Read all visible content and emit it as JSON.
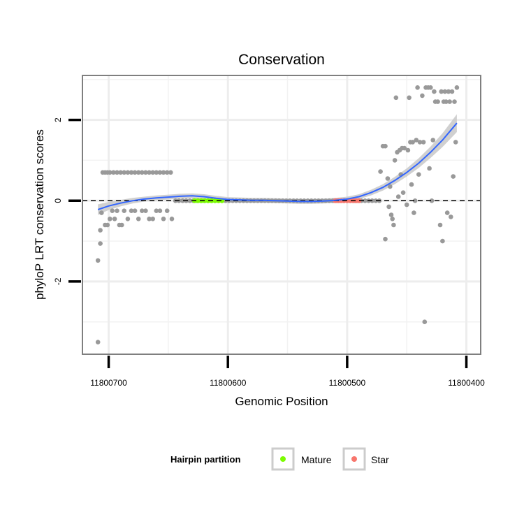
{
  "chart_data": {
    "type": "scatter",
    "title": "Conservation",
    "xlabel": "Genomic Position",
    "ylabel": "phyloP LRT conservation scores",
    "xlim": [
      11800722,
      11800388
    ],
    "ylim": [
      -3.8,
      3.1
    ],
    "x_reversed": true,
    "x_ticks": [
      11800700,
      11800600,
      11800500,
      11800400
    ],
    "x_tick_labels": [
      "11800700",
      "11800600",
      "11800500",
      "11800400"
    ],
    "y_ticks": [
      -2,
      0,
      2
    ],
    "y_tick_labels": [
      "-2",
      "0",
      "2"
    ],
    "grid": true,
    "reference_line": {
      "y": 0,
      "style": "dashed"
    },
    "colors": {
      "points": "#999999",
      "smooth": "#3366FF",
      "band": "#C8C8C8",
      "panel_border": "#7F7F7F",
      "mature": "#7CFC00",
      "star": "#F8766D"
    },
    "points": [
      {
        "x": 11800709,
        "y": -3.5
      },
      {
        "x": 11800709,
        "y": -1.48
      },
      {
        "x": 11800707,
        "y": -1.06
      },
      {
        "x": 11800707,
        "y": -0.73
      },
      {
        "x": 11800706,
        "y": -0.3
      },
      {
        "x": 11800705,
        "y": 0.7
      },
      {
        "x": 11800703,
        "y": 0.7
      },
      {
        "x": 11800701,
        "y": 0.7
      },
      {
        "x": 11800699,
        "y": 0.7
      },
      {
        "x": 11800696,
        "y": 0.7
      },
      {
        "x": 11800693,
        "y": 0.7
      },
      {
        "x": 11800690,
        "y": 0.7
      },
      {
        "x": 11800687,
        "y": 0.7
      },
      {
        "x": 11800684,
        "y": 0.7
      },
      {
        "x": 11800681,
        "y": 0.7
      },
      {
        "x": 11800678,
        "y": 0.7
      },
      {
        "x": 11800675,
        "y": 0.7
      },
      {
        "x": 11800672,
        "y": 0.7
      },
      {
        "x": 11800669,
        "y": 0.7
      },
      {
        "x": 11800666,
        "y": 0.7
      },
      {
        "x": 11800663,
        "y": 0.7
      },
      {
        "x": 11800660,
        "y": 0.7
      },
      {
        "x": 11800657,
        "y": 0.7
      },
      {
        "x": 11800654,
        "y": 0.7
      },
      {
        "x": 11800651,
        "y": 0.7
      },
      {
        "x": 11800648,
        "y": 0.7
      },
      {
        "x": 11800703,
        "y": -0.6
      },
      {
        "x": 11800701,
        "y": -0.6
      },
      {
        "x": 11800699,
        "y": -0.45
      },
      {
        "x": 11800697,
        "y": -0.25
      },
      {
        "x": 11800695,
        "y": -0.45
      },
      {
        "x": 11800693,
        "y": -0.25
      },
      {
        "x": 11800691,
        "y": -0.6
      },
      {
        "x": 11800689,
        "y": -0.6
      },
      {
        "x": 11800687,
        "y": -0.25
      },
      {
        "x": 11800684,
        "y": -0.45
      },
      {
        "x": 11800681,
        "y": -0.25
      },
      {
        "x": 11800678,
        "y": -0.25
      },
      {
        "x": 11800675,
        "y": -0.45
      },
      {
        "x": 11800672,
        "y": -0.25
      },
      {
        "x": 11800669,
        "y": -0.25
      },
      {
        "x": 11800666,
        "y": -0.45
      },
      {
        "x": 11800663,
        "y": -0.45
      },
      {
        "x": 11800660,
        "y": -0.25
      },
      {
        "x": 11800657,
        "y": -0.25
      },
      {
        "x": 11800654,
        "y": -0.45
      },
      {
        "x": 11800651,
        "y": -0.25
      },
      {
        "x": 11800647,
        "y": -0.45
      },
      {
        "x": 11800644,
        "y": 0.0
      },
      {
        "x": 11800641,
        "y": 0.0
      },
      {
        "x": 11800638,
        "y": 0.0
      },
      {
        "x": 11800635,
        "y": 0.0
      },
      {
        "x": 11800632,
        "y": 0.0
      },
      {
        "x": 11800629,
        "y": 0.0
      },
      {
        "x": 11800626,
        "y": 0.0
      },
      {
        "x": 11800623,
        "y": 0.0
      },
      {
        "x": 11800620,
        "y": 0.0
      },
      {
        "x": 11800617,
        "y": 0.0
      },
      {
        "x": 11800614,
        "y": 0.0
      },
      {
        "x": 11800611,
        "y": 0.0
      },
      {
        "x": 11800608,
        "y": 0.0
      },
      {
        "x": 11800605,
        "y": 0.0
      },
      {
        "x": 11800602,
        "y": 0.0
      },
      {
        "x": 11800599,
        "y": 0.0
      },
      {
        "x": 11800596,
        "y": 0.0
      },
      {
        "x": 11800593,
        "y": 0.0
      },
      {
        "x": 11800590,
        "y": 0.0
      },
      {
        "x": 11800587,
        "y": 0.0
      },
      {
        "x": 11800584,
        "y": 0.0
      },
      {
        "x": 11800581,
        "y": 0.0
      },
      {
        "x": 11800578,
        "y": 0.0
      },
      {
        "x": 11800575,
        "y": 0.0
      },
      {
        "x": 11800572,
        "y": 0.0
      },
      {
        "x": 11800569,
        "y": 0.0
      },
      {
        "x": 11800566,
        "y": 0.0
      },
      {
        "x": 11800563,
        "y": 0.0
      },
      {
        "x": 11800560,
        "y": 0.0
      },
      {
        "x": 11800557,
        "y": 0.0
      },
      {
        "x": 11800554,
        "y": 0.0
      },
      {
        "x": 11800551,
        "y": 0.0
      },
      {
        "x": 11800548,
        "y": 0.0
      },
      {
        "x": 11800545,
        "y": 0.0
      },
      {
        "x": 11800542,
        "y": 0.0
      },
      {
        "x": 11800539,
        "y": 0.0
      },
      {
        "x": 11800536,
        "y": 0.0
      },
      {
        "x": 11800533,
        "y": 0.0
      },
      {
        "x": 11800530,
        "y": 0.0
      },
      {
        "x": 11800527,
        "y": 0.0
      },
      {
        "x": 11800524,
        "y": 0.0
      },
      {
        "x": 11800521,
        "y": 0.0
      },
      {
        "x": 11800518,
        "y": 0.0
      },
      {
        "x": 11800515,
        "y": 0.0
      },
      {
        "x": 11800512,
        "y": 0.0
      },
      {
        "x": 11800509,
        "y": 0.0
      },
      {
        "x": 11800506,
        "y": 0.0
      },
      {
        "x": 11800503,
        "y": 0.0
      },
      {
        "x": 11800500,
        "y": 0.0
      },
      {
        "x": 11800497,
        "y": 0.0
      },
      {
        "x": 11800494,
        "y": 0.0
      },
      {
        "x": 11800491,
        "y": 0.0
      },
      {
        "x": 11800488,
        "y": 0.0
      },
      {
        "x": 11800485,
        "y": 0.0
      },
      {
        "x": 11800482,
        "y": 0.0
      },
      {
        "x": 11800479,
        "y": 0.0
      },
      {
        "x": 11800476,
        "y": 0.0
      },
      {
        "x": 11800473,
        "y": 0.0
      },
      {
        "x": 11800472,
        "y": 0.72
      },
      {
        "x": 11800470,
        "y": 1.35
      },
      {
        "x": 11800468,
        "y": 1.35
      },
      {
        "x": 11800468,
        "y": -0.95
      },
      {
        "x": 11800466,
        "y": 0.55
      },
      {
        "x": 11800465,
        "y": -0.15
      },
      {
        "x": 11800464,
        "y": 0.35
      },
      {
        "x": 11800463,
        "y": -0.35
      },
      {
        "x": 11800462,
        "y": -0.45
      },
      {
        "x": 11800461,
        "y": -0.6
      },
      {
        "x": 11800460,
        "y": 1.0
      },
      {
        "x": 11800459,
        "y": 2.55
      },
      {
        "x": 11800458,
        "y": 1.2
      },
      {
        "x": 11800457,
        "y": 0.1
      },
      {
        "x": 11800456,
        "y": 1.25
      },
      {
        "x": 11800455,
        "y": 0.65
      },
      {
        "x": 11800454,
        "y": 1.3
      },
      {
        "x": 11800453,
        "y": 0.2
      },
      {
        "x": 11800452,
        "y": 1.3
      },
      {
        "x": 11800450,
        "y": -0.1
      },
      {
        "x": 11800449,
        "y": 1.25
      },
      {
        "x": 11800448,
        "y": 2.55
      },
      {
        "x": 11800447,
        "y": 1.45
      },
      {
        "x": 11800446,
        "y": 0.4
      },
      {
        "x": 11800445,
        "y": 1.45
      },
      {
        "x": 11800444,
        "y": -0.3
      },
      {
        "x": 11800443,
        "y": 0.0
      },
      {
        "x": 11800442,
        "y": 1.5
      },
      {
        "x": 11800441,
        "y": 2.8
      },
      {
        "x": 11800440,
        "y": 0.65
      },
      {
        "x": 11800439,
        "y": 1.45
      },
      {
        "x": 11800437,
        "y": 2.6
      },
      {
        "x": 11800436,
        "y": 1.45
      },
      {
        "x": 11800435,
        "y": -3.0
      },
      {
        "x": 11800434,
        "y": 2.8
      },
      {
        "x": 11800432,
        "y": 2.8
      },
      {
        "x": 11800431,
        "y": 0.8
      },
      {
        "x": 11800430,
        "y": 2.8
      },
      {
        "x": 11800429,
        "y": 0.0
      },
      {
        "x": 11800428,
        "y": 1.5
      },
      {
        "x": 11800427,
        "y": 2.7
      },
      {
        "x": 11800426,
        "y": 2.45
      },
      {
        "x": 11800424,
        "y": 2.45
      },
      {
        "x": 11800422,
        "y": -0.6
      },
      {
        "x": 11800421,
        "y": 2.7
      },
      {
        "x": 11800420,
        "y": -1.0
      },
      {
        "x": 11800419,
        "y": 2.45
      },
      {
        "x": 11800418,
        "y": 2.7
      },
      {
        "x": 11800417,
        "y": 2.45
      },
      {
        "x": 11800416,
        "y": -0.3
      },
      {
        "x": 11800415,
        "y": 2.7
      },
      {
        "x": 11800414,
        "y": 2.45
      },
      {
        "x": 11800413,
        "y": -0.4
      },
      {
        "x": 11800412,
        "y": 2.7
      },
      {
        "x": 11800411,
        "y": 0.6
      },
      {
        "x": 11800410,
        "y": 2.45
      },
      {
        "x": 11800409,
        "y": 1.45
      },
      {
        "x": 11800408,
        "y": 2.8
      }
    ],
    "partitions": [
      {
        "name": "Mature",
        "x_start": 11800628,
        "x_end": 11800605,
        "y": 0.0
      },
      {
        "name": "Star",
        "x_start": 11800510,
        "x_end": 11800490,
        "y": 0.0
      }
    ],
    "smooth": {
      "x": [
        11800709,
        11800700,
        11800690,
        11800680,
        11800670,
        11800660,
        11800650,
        11800640,
        11800630,
        11800620,
        11800610,
        11800600,
        11800590,
        11800580,
        11800570,
        11800560,
        11800550,
        11800540,
        11800530,
        11800520,
        11800510,
        11800500,
        11800490,
        11800480,
        11800470,
        11800460,
        11800450,
        11800440,
        11800430,
        11800420,
        11800408
      ],
      "y": [
        -0.22,
        -0.13,
        -0.06,
        0.0,
        0.04,
        0.07,
        0.09,
        0.11,
        0.12,
        0.1,
        0.06,
        0.03,
        0.02,
        0.01,
        0.01,
        0.0,
        -0.01,
        -0.02,
        -0.02,
        -0.01,
        0.01,
        0.04,
        0.1,
        0.2,
        0.33,
        0.5,
        0.7,
        0.93,
        1.2,
        1.5,
        1.92
      ],
      "se": [
        0.13,
        0.1,
        0.08,
        0.07,
        0.06,
        0.06,
        0.06,
        0.06,
        0.06,
        0.06,
        0.06,
        0.06,
        0.06,
        0.06,
        0.06,
        0.06,
        0.06,
        0.06,
        0.06,
        0.06,
        0.06,
        0.06,
        0.06,
        0.07,
        0.08,
        0.09,
        0.1,
        0.12,
        0.14,
        0.17,
        0.22
      ]
    },
    "legend": {
      "title": "Hairpin partition",
      "position": "bottom",
      "entries": [
        {
          "label": "Mature",
          "color": "#7CFC00"
        },
        {
          "label": "Star",
          "color": "#F8766D"
        }
      ]
    }
  }
}
